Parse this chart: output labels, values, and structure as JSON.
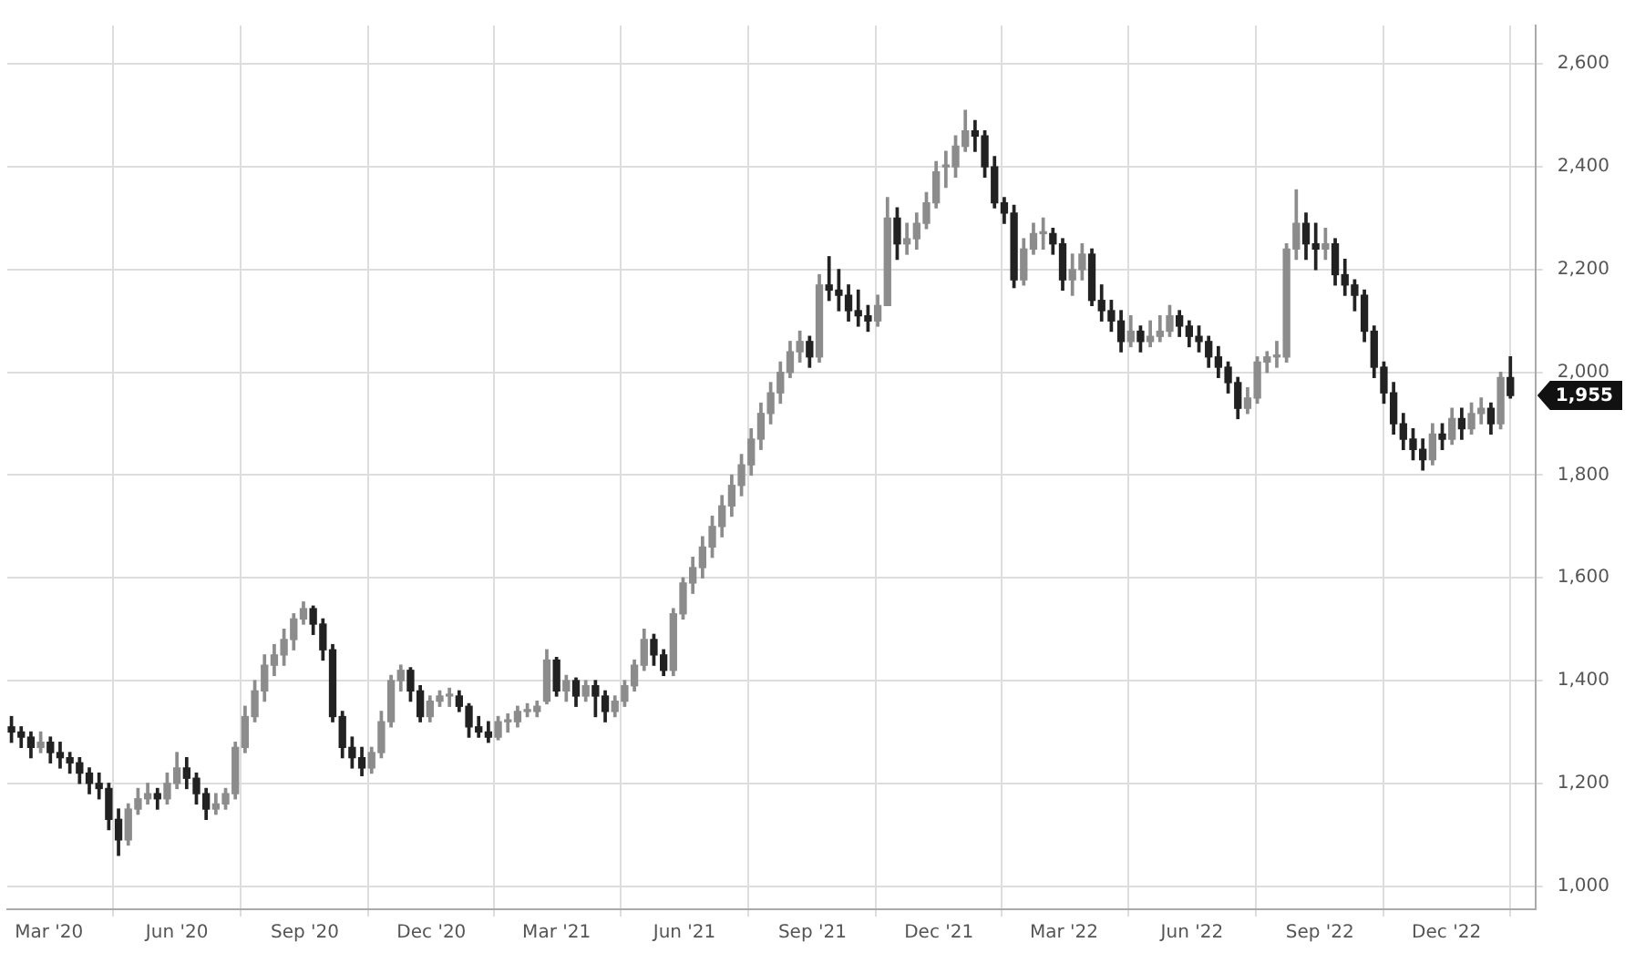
{
  "chart_data": {
    "type": "candlestick",
    "grid": true,
    "legend": false,
    "colors": [
      "#222222",
      "#222222",
      "#222222",
      "#8c8c8c",
      "#222222",
      "#222222",
      "#222222",
      "#222222",
      "#222222",
      "#222222",
      "#222222",
      "#222222",
      "#8c8c8c",
      "#8c8c8c",
      "#8c8c8c",
      "#222222",
      "#8c8c8c",
      "#8c8c8c",
      "#222222",
      "#222222",
      "#222222",
      "#8c8c8c",
      "#8c8c8c",
      "#8c8c8c",
      "#8c8c8c",
      "#8c8c8c",
      "#8c8c8c",
      "#8c8c8c",
      "#8c8c8c",
      "#8c8c8c",
      "#8c8c8c",
      "#222222",
      "#222222",
      "#222222",
      "#222222",
      "#222222",
      "#222222",
      "#8c8c8c",
      "#8c8c8c",
      "#8c8c8c",
      "#8c8c8c",
      "#222222",
      "#222222",
      "#8c8c8c",
      "#8c8c8c",
      "#8c8c8c",
      "#222222",
      "#222222",
      "#222222",
      "#222222",
      "#8c8c8c",
      "#8c8c8c",
      "#8c8c8c",
      "#8c8c8c",
      "#8c8c8c",
      "#8c8c8c",
      "#222222",
      "#8c8c8c",
      "#222222",
      "#8c8c8c",
      "#222222",
      "#222222",
      "#8c8c8c",
      "#8c8c8c",
      "#8c8c8c",
      "#8c8c8c",
      "#222222",
      "#222222",
      "#8c8c8c",
      "#8c8c8c",
      "#8c8c8c",
      "#8c8c8c",
      "#8c8c8c",
      "#8c8c8c",
      "#8c8c8c",
      "#8c8c8c",
      "#8c8c8c",
      "#8c8c8c",
      "#8c8c8c",
      "#8c8c8c",
      "#8c8c8c",
      "#8c8c8c",
      "#222222",
      "#8c8c8c",
      "#222222",
      "#222222",
      "#222222",
      "#222222",
      "#222222",
      "#8c8c8c",
      "#8c8c8c",
      "#222222",
      "#8c8c8c",
      "#8c8c8c",
      "#8c8c8c",
      "#8c8c8c",
      "#8c8c8c",
      "#8c8c8c",
      "#8c8c8c",
      "#222222",
      "#222222",
      "#222222",
      "#222222",
      "#222222",
      "#8c8c8c",
      "#8c8c8c",
      "#8c8c8c",
      "#222222",
      "#222222",
      "#8c8c8c",
      "#8c8c8c",
      "#222222",
      "#222222",
      "#222222",
      "#222222",
      "#8c8c8c",
      "#222222",
      "#8c8c8c",
      "#8c8c8c",
      "#8c8c8c",
      "#222222",
      "#222222",
      "#222222",
      "#222222",
      "#222222",
      "#222222",
      "#222222",
      "#8c8c8c",
      "#8c8c8c",
      "#8c8c8c",
      "#8c8c8c",
      "#8c8c8c",
      "#8c8c8c",
      "#222222",
      "#222222",
      "#8c8c8c",
      "#222222",
      "#222222",
      "#222222",
      "#222222",
      "#222222",
      "#222222",
      "#222222",
      "#222222",
      "#222222",
      "#222222",
      "#8c8c8c",
      "#222222",
      "#8c8c8c",
      "#222222",
      "#8c8c8c",
      "#8c8c8c",
      "#222222",
      "#8c8c8c",
      "#222222"
    ],
    "annotations": [
      "1,955"
    ],
    "xlim": [
      "2020-01-31",
      "2023-02-03"
    ],
    "ylim": [
      955,
      2675
    ],
    "xticks": [
      {
        "value": "2020-03-01",
        "label": "Mar '20"
      },
      {
        "value": "2020-06-01",
        "label": "Jun '20"
      },
      {
        "value": "2020-09-01",
        "label": "Sep '20"
      },
      {
        "value": "2020-12-01",
        "label": "Dec '20"
      },
      {
        "value": "2021-03-01",
        "label": "Mar '21"
      },
      {
        "value": "2021-06-01",
        "label": "Jun '21"
      },
      {
        "value": "2021-09-01",
        "label": "Sep '21"
      },
      {
        "value": "2021-12-01",
        "label": "Dec '21"
      },
      {
        "value": "2022-03-01",
        "label": "Mar '22"
      },
      {
        "value": "2022-06-01",
        "label": "Jun '22"
      },
      {
        "value": "2022-09-01",
        "label": "Sep '22"
      },
      {
        "value": "2022-12-01",
        "label": "Dec '22"
      }
    ],
    "yticks": [
      {
        "value": 1000,
        "label": "1,000"
      },
      {
        "value": 1200,
        "label": "1,200"
      },
      {
        "value": 1400,
        "label": "1,400"
      },
      {
        "value": 1600,
        "label": "1,600"
      },
      {
        "value": 1800,
        "label": "1,800"
      },
      {
        "value": 2000,
        "label": "2,000"
      },
      {
        "value": 2200,
        "label": "2,200"
      },
      {
        "value": 2400,
        "label": "2,400"
      },
      {
        "value": 2600,
        "label": "2,600"
      }
    ],
    "x": [
      "2020-02-03",
      "2020-02-10",
      "2020-02-17",
      "2020-02-24",
      "2020-03-02",
      "2020-03-09",
      "2020-03-16",
      "2020-03-23",
      "2020-03-30",
      "2020-04-06",
      "2020-04-13",
      "2020-04-20",
      "2020-04-27",
      "2020-05-04",
      "2020-05-11",
      "2020-05-18",
      "2020-05-25",
      "2020-06-01",
      "2020-06-08",
      "2020-06-15",
      "2020-06-22",
      "2020-06-29",
      "2020-07-06",
      "2020-07-13",
      "2020-07-20",
      "2020-07-27",
      "2020-08-03",
      "2020-08-10",
      "2020-08-17",
      "2020-08-24",
      "2020-08-31",
      "2020-09-07",
      "2020-09-14",
      "2020-09-21",
      "2020-09-28",
      "2020-10-05",
      "2020-10-12",
      "2020-10-19",
      "2020-10-26",
      "2020-11-02",
      "2020-11-09",
      "2020-11-16",
      "2020-11-23",
      "2020-11-30",
      "2020-12-07",
      "2020-12-14",
      "2020-12-21",
      "2020-12-28",
      "2021-01-04",
      "2021-01-11",
      "2021-01-18",
      "2021-01-25",
      "2021-02-01",
      "2021-02-08",
      "2021-02-15",
      "2021-02-22",
      "2021-03-01",
      "2021-03-08",
      "2021-03-15",
      "2021-03-22",
      "2021-03-29",
      "2021-04-05",
      "2021-04-12",
      "2021-04-19",
      "2021-04-26",
      "2021-05-03",
      "2021-05-10",
      "2021-05-17",
      "2021-05-24",
      "2021-05-31",
      "2021-06-07",
      "2021-06-14",
      "2021-06-21",
      "2021-06-28",
      "2021-07-05",
      "2021-07-12",
      "2021-07-19",
      "2021-07-26",
      "2021-08-02",
      "2021-08-09",
      "2021-08-16",
      "2021-08-23",
      "2021-08-30",
      "2021-09-06",
      "2021-09-13",
      "2021-09-20",
      "2021-09-27",
      "2021-10-04",
      "2021-10-11",
      "2021-10-18",
      "2021-10-25",
      "2021-11-01",
      "2021-11-08",
      "2021-11-15",
      "2021-11-22",
      "2021-11-29",
      "2021-12-06",
      "2021-12-13",
      "2021-12-20",
      "2021-12-27",
      "2022-01-03",
      "2022-01-10",
      "2022-01-17",
      "2022-01-24",
      "2022-01-31",
      "2022-02-07",
      "2022-02-14",
      "2022-02-21",
      "2022-02-28",
      "2022-03-07",
      "2022-03-14",
      "2022-03-21",
      "2022-03-28",
      "2022-04-04",
      "2022-04-11",
      "2022-04-18",
      "2022-04-25",
      "2022-05-02",
      "2022-05-09",
      "2022-05-16",
      "2022-05-23",
      "2022-05-30",
      "2022-06-06",
      "2022-06-13",
      "2022-06-20",
      "2022-06-27",
      "2022-07-04",
      "2022-07-11",
      "2022-07-18",
      "2022-07-25",
      "2022-08-01",
      "2022-08-08",
      "2022-08-15",
      "2022-08-22",
      "2022-08-29",
      "2022-09-05",
      "2022-09-12",
      "2022-09-19",
      "2022-09-26",
      "2022-10-03",
      "2022-10-10",
      "2022-10-17",
      "2022-10-24",
      "2022-10-31",
      "2022-11-07",
      "2022-11-14",
      "2022-11-21",
      "2022-11-28",
      "2022-12-05",
      "2022-12-12",
      "2022-12-19",
      "2022-12-26",
      "2023-01-02",
      "2023-01-09",
      "2023-01-16"
    ],
    "ohlc": [
      [
        1310,
        1330,
        1280,
        1300
      ],
      [
        1300,
        1310,
        1270,
        1290
      ],
      [
        1290,
        1300,
        1250,
        1270
      ],
      [
        1270,
        1300,
        1260,
        1280
      ],
      [
        1280,
        1290,
        1240,
        1260
      ],
      [
        1260,
        1280,
        1230,
        1250
      ],
      [
        1250,
        1260,
        1220,
        1240
      ],
      [
        1240,
        1250,
        1200,
        1220
      ],
      [
        1220,
        1230,
        1180,
        1200
      ],
      [
        1200,
        1220,
        1170,
        1190
      ],
      [
        1190,
        1200,
        1110,
        1130
      ],
      [
        1130,
        1150,
        1060,
        1090
      ],
      [
        1090,
        1160,
        1080,
        1150
      ],
      [
        1150,
        1190,
        1140,
        1170
      ],
      [
        1170,
        1200,
        1160,
        1180
      ],
      [
        1180,
        1190,
        1150,
        1170
      ],
      [
        1170,
        1220,
        1160,
        1200
      ],
      [
        1200,
        1260,
        1190,
        1230
      ],
      [
        1230,
        1250,
        1190,
        1210
      ],
      [
        1210,
        1220,
        1160,
        1180
      ],
      [
        1180,
        1190,
        1130,
        1150
      ],
      [
        1150,
        1180,
        1140,
        1160
      ],
      [
        1160,
        1190,
        1150,
        1180
      ],
      [
        1180,
        1280,
        1170,
        1270
      ],
      [
        1270,
        1350,
        1260,
        1330
      ],
      [
        1330,
        1400,
        1320,
        1380
      ],
      [
        1380,
        1450,
        1360,
        1430
      ],
      [
        1430,
        1470,
        1410,
        1450
      ],
      [
        1450,
        1500,
        1430,
        1480
      ],
      [
        1480,
        1530,
        1460,
        1520
      ],
      [
        1520,
        1553,
        1510,
        1540
      ],
      [
        1540,
        1545,
        1490,
        1510
      ],
      [
        1510,
        1520,
        1440,
        1460
      ],
      [
        1460,
        1470,
        1320,
        1330
      ],
      [
        1330,
        1340,
        1250,
        1270
      ],
      [
        1270,
        1290,
        1230,
        1250
      ],
      [
        1250,
        1270,
        1215,
        1230
      ],
      [
        1230,
        1270,
        1220,
        1260
      ],
      [
        1260,
        1340,
        1250,
        1320
      ],
      [
        1320,
        1410,
        1310,
        1400
      ],
      [
        1400,
        1430,
        1380,
        1420
      ],
      [
        1420,
        1425,
        1360,
        1380
      ],
      [
        1380,
        1390,
        1320,
        1330
      ],
      [
        1330,
        1370,
        1320,
        1360
      ],
      [
        1360,
        1380,
        1350,
        1370
      ],
      [
        1370,
        1385,
        1350,
        1370
      ],
      [
        1370,
        1380,
        1340,
        1350
      ],
      [
        1350,
        1355,
        1290,
        1310
      ],
      [
        1310,
        1330,
        1290,
        1300
      ],
      [
        1300,
        1320,
        1280,
        1290
      ],
      [
        1290,
        1330,
        1285,
        1320
      ],
      [
        1320,
        1335,
        1300,
        1320
      ],
      [
        1320,
        1350,
        1310,
        1340
      ],
      [
        1340,
        1355,
        1330,
        1340
      ],
      [
        1340,
        1360,
        1330,
        1350
      ],
      [
        1360,
        1460,
        1355,
        1440
      ],
      [
        1440,
        1445,
        1370,
        1380
      ],
      [
        1380,
        1410,
        1360,
        1400
      ],
      [
        1400,
        1405,
        1350,
        1370
      ],
      [
        1370,
        1400,
        1360,
        1390
      ],
      [
        1390,
        1400,
        1330,
        1370
      ],
      [
        1370,
        1380,
        1320,
        1340
      ],
      [
        1340,
        1370,
        1330,
        1360
      ],
      [
        1360,
        1400,
        1350,
        1390
      ],
      [
        1390,
        1440,
        1380,
        1430
      ],
      [
        1430,
        1500,
        1420,
        1480
      ],
      [
        1480,
        1490,
        1430,
        1450
      ],
      [
        1450,
        1460,
        1410,
        1420
      ],
      [
        1420,
        1540,
        1410,
        1530
      ],
      [
        1530,
        1600,
        1520,
        1590
      ],
      [
        1590,
        1640,
        1570,
        1620
      ],
      [
        1620,
        1680,
        1600,
        1660
      ],
      [
        1660,
        1720,
        1640,
        1700
      ],
      [
        1700,
        1760,
        1680,
        1740
      ],
      [
        1740,
        1800,
        1720,
        1780
      ],
      [
        1780,
        1840,
        1760,
        1820
      ],
      [
        1820,
        1890,
        1800,
        1870
      ],
      [
        1870,
        1940,
        1850,
        1920
      ],
      [
        1920,
        1980,
        1900,
        1960
      ],
      [
        1960,
        2020,
        1940,
        2000
      ],
      [
        2000,
        2060,
        1990,
        2040
      ],
      [
        2040,
        2080,
        2020,
        2060
      ],
      [
        2060,
        2070,
        2010,
        2030
      ],
      [
        2030,
        2190,
        2020,
        2170
      ],
      [
        2170,
        2225,
        2140,
        2160
      ],
      [
        2160,
        2200,
        2120,
        2150
      ],
      [
        2150,
        2170,
        2100,
        2120
      ],
      [
        2120,
        2160,
        2090,
        2110
      ],
      [
        2110,
        2130,
        2080,
        2100
      ],
      [
        2100,
        2150,
        2090,
        2130
      ],
      [
        2130,
        2340,
        2130,
        2300
      ],
      [
        2300,
        2320,
        2220,
        2250
      ],
      [
        2250,
        2290,
        2230,
        2260
      ],
      [
        2260,
        2310,
        2240,
        2290
      ],
      [
        2290,
        2350,
        2280,
        2330
      ],
      [
        2330,
        2410,
        2320,
        2390
      ],
      [
        2400,
        2430,
        2360,
        2400
      ],
      [
        2400,
        2460,
        2380,
        2440
      ],
      [
        2440,
        2510,
        2430,
        2470
      ],
      [
        2470,
        2490,
        2430,
        2460
      ],
      [
        2460,
        2470,
        2380,
        2400
      ],
      [
        2400,
        2420,
        2320,
        2330
      ],
      [
        2330,
        2340,
        2290,
        2310
      ],
      [
        2310,
        2325,
        2165,
        2180
      ],
      [
        2180,
        2260,
        2170,
        2240
      ],
      [
        2240,
        2290,
        2230,
        2270
      ],
      [
        2270,
        2300,
        2240,
        2270
      ],
      [
        2270,
        2280,
        2230,
        2250
      ],
      [
        2250,
        2260,
        2160,
        2180
      ],
      [
        2180,
        2230,
        2150,
        2200
      ],
      [
        2200,
        2250,
        2180,
        2230
      ],
      [
        2230,
        2240,
        2130,
        2140
      ],
      [
        2140,
        2170,
        2100,
        2120
      ],
      [
        2120,
        2140,
        2080,
        2100
      ],
      [
        2100,
        2120,
        2040,
        2060
      ],
      [
        2060,
        2110,
        2050,
        2080
      ],
      [
        2080,
        2090,
        2040,
        2060
      ],
      [
        2060,
        2100,
        2050,
        2070
      ],
      [
        2070,
        2110,
        2060,
        2080
      ],
      [
        2080,
        2130,
        2070,
        2110
      ],
      [
        2110,
        2120,
        2070,
        2090
      ],
      [
        2090,
        2100,
        2050,
        2070
      ],
      [
        2070,
        2090,
        2040,
        2060
      ],
      [
        2060,
        2070,
        2010,
        2030
      ],
      [
        2030,
        2050,
        1990,
        2010
      ],
      [
        2010,
        2020,
        1960,
        1980
      ],
      [
        1980,
        1990,
        1910,
        1930
      ],
      [
        1930,
        1970,
        1920,
        1950
      ],
      [
        1950,
        2030,
        1940,
        2020
      ],
      [
        2020,
        2040,
        2000,
        2030
      ],
      [
        2030,
        2060,
        2010,
        2030
      ],
      [
        2030,
        2250,
        2020,
        2240
      ],
      [
        2240,
        2355,
        2220,
        2290
      ],
      [
        2290,
        2310,
        2220,
        2250
      ],
      [
        2250,
        2290,
        2200,
        2240
      ],
      [
        2240,
        2280,
        2220,
        2250
      ],
      [
        2250,
        2260,
        2170,
        2190
      ],
      [
        2190,
        2220,
        2150,
        2170
      ],
      [
        2170,
        2180,
        2120,
        2150
      ],
      [
        2150,
        2160,
        2060,
        2080
      ],
      [
        2080,
        2090,
        1990,
        2010
      ],
      [
        2010,
        2020,
        1940,
        1960
      ],
      [
        1960,
        1980,
        1880,
        1900
      ],
      [
        1900,
        1920,
        1850,
        1870
      ],
      [
        1870,
        1890,
        1830,
        1850
      ],
      [
        1850,
        1870,
        1810,
        1830
      ],
      [
        1830,
        1900,
        1820,
        1880
      ],
      [
        1880,
        1900,
        1850,
        1870
      ],
      [
        1870,
        1930,
        1860,
        1910
      ],
      [
        1910,
        1930,
        1870,
        1890
      ],
      [
        1890,
        1940,
        1880,
        1920
      ],
      [
        1920,
        1950,
        1900,
        1930
      ],
      [
        1930,
        1940,
        1880,
        1900
      ],
      [
        1900,
        2000,
        1890,
        1990
      ],
      [
        1990,
        2030,
        1950,
        1955
      ]
    ]
  }
}
